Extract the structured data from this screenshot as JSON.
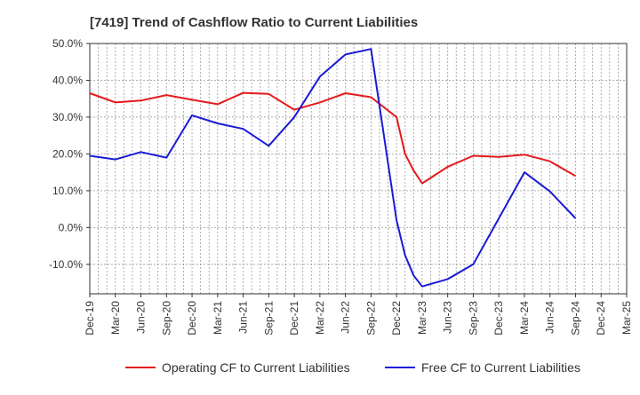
{
  "chart_data": {
    "type": "line",
    "title": "[7419]  Trend of Cashflow Ratio to Current Liabilities",
    "xlabel": "",
    "ylabel": "",
    "categories": [
      "Dec-19",
      "Mar-20",
      "Jun-20",
      "Sep-20",
      "Dec-20",
      "Mar-21",
      "Jun-21",
      "Sep-21",
      "Dec-21",
      "Mar-22",
      "Jun-22",
      "Sep-22",
      "Dec-22",
      "Mar-23",
      "Jun-23",
      "Sep-23",
      "Dec-23",
      "Mar-24",
      "Jun-24",
      "Sep-24",
      "Dec-24",
      "Mar-25"
    ],
    "ylim": [
      -18,
      50
    ],
    "y_ticks": [
      50,
      40,
      30,
      20,
      10,
      0,
      -10
    ],
    "y_tick_labels": [
      "50.0%",
      "40.0%",
      "30.0%",
      "20.0%",
      "10.0%",
      "0.0%",
      "-10.0%"
    ],
    "grid": true,
    "legend_position": "bottom",
    "series": [
      {
        "name": "Operating CF to Current Liabilities",
        "color": "#e41a1c",
        "points": [
          [
            "Dec-19",
            36.5
          ],
          [
            "Mar-20",
            34.0
          ],
          [
            "Jun-20",
            34.5
          ],
          [
            "Sep-20",
            36.0
          ],
          [
            "Dec-20",
            34.7
          ],
          [
            "Mar-21",
            33.5
          ],
          [
            "Jun-21",
            36.6
          ],
          [
            "Sep-21",
            36.3
          ],
          [
            "Dec-21",
            32.0
          ],
          [
            "Mar-22",
            34.0
          ],
          [
            "Jun-22",
            36.5
          ],
          [
            "Sep-22",
            35.4
          ],
          [
            "Dec-22",
            30.0
          ],
          [
            "Jan-23",
            20.0
          ],
          [
            "Feb-23",
            15.5
          ],
          [
            "Mar-23",
            12.0
          ],
          [
            "Jun-23",
            16.5
          ],
          [
            "Sep-23",
            19.5
          ],
          [
            "Dec-23",
            19.2
          ],
          [
            "Mar-24",
            19.8
          ],
          [
            "Jun-24",
            18.0
          ],
          [
            "Sep-24",
            14.0
          ]
        ]
      },
      {
        "name": "Free CF to Current Liabilities",
        "color": "#1a1ad6",
        "points": [
          [
            "Dec-19",
            19.5
          ],
          [
            "Mar-20",
            18.5
          ],
          [
            "Jun-20",
            20.5
          ],
          [
            "Sep-20",
            19.0
          ],
          [
            "Dec-20",
            30.5
          ],
          [
            "Mar-21",
            28.3
          ],
          [
            "Jun-21",
            26.8
          ],
          [
            "Sep-21",
            22.2
          ],
          [
            "Dec-21",
            30.0
          ],
          [
            "Mar-22",
            41.0
          ],
          [
            "Jun-22",
            47.0
          ],
          [
            "Sep-22",
            48.5
          ],
          [
            "Dec-22",
            2.0
          ],
          [
            "Jan-23",
            -7.5
          ],
          [
            "Feb-23",
            -13.0
          ],
          [
            "Mar-23",
            -16.0
          ],
          [
            "Jun-23",
            -14.0
          ],
          [
            "Sep-23",
            -10.0
          ],
          [
            "Dec-23",
            2.5
          ],
          [
            "Mar-24",
            15.0
          ],
          [
            "Jun-24",
            9.8
          ],
          [
            "Sep-24",
            2.5
          ]
        ]
      }
    ]
  }
}
